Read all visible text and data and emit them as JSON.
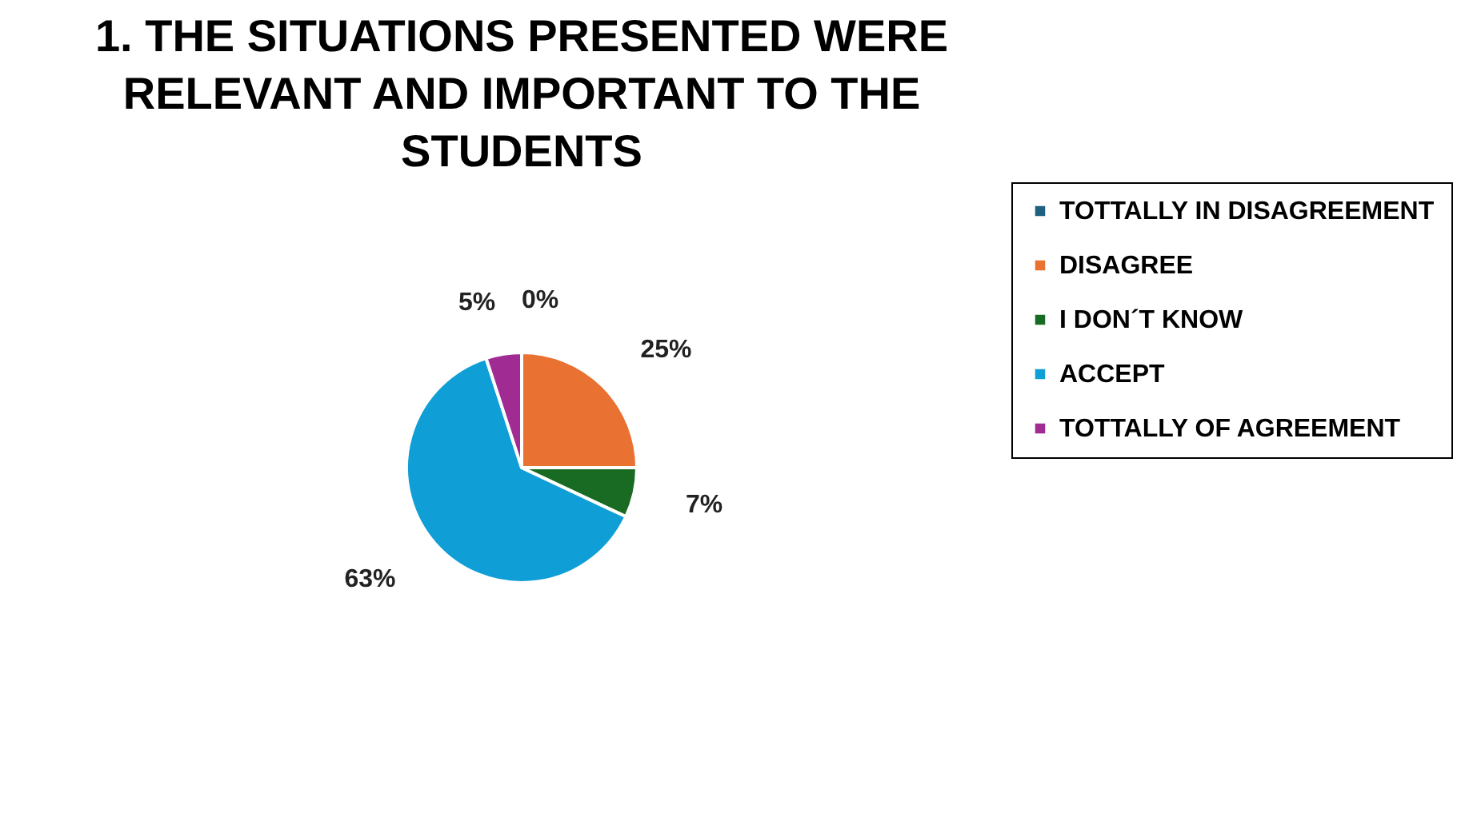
{
  "chart_data": {
    "type": "pie",
    "title": "1. THE SITUATIONS PRESENTED WERE RELEVANT AND IMPORTANT TO THE STUDENTS",
    "categories": [
      "TOTTALLY IN DISAGREEMENT",
      "DISAGREE",
      "I DON´T KNOW",
      "ACCEPT",
      "TOTTALLY OF AGREEMENT"
    ],
    "values": [
      0,
      25,
      7,
      63,
      5
    ],
    "colors": [
      "#1f5f7f",
      "#e97132",
      "#196b24",
      "#0f9ed5",
      "#a02b93"
    ],
    "value_labels": [
      "0%",
      "25%",
      "7%",
      "63%",
      "5%"
    ],
    "legend": "right"
  }
}
